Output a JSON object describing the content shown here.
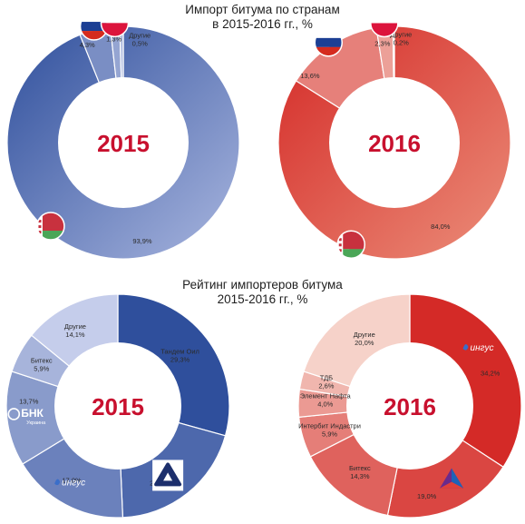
{
  "titles": {
    "top_line1": "Импорт битума по странам",
    "top_line2": "в 2015-2016 гг., %",
    "bottom_line1": "Рейтинг импортеров битума",
    "bottom_line2": "2015-2016 гг., %"
  },
  "colors": {
    "blue_dark": "#2f4f9c",
    "blue_light": "#b7c2e4",
    "red_dark": "#d42a27",
    "red_light": "#f4c7bd",
    "year": "#c8102e"
  },
  "flags": {
    "russia": "russia-flag-icon",
    "poland": "poland-flag-icon",
    "belarus": "belarus-flag-icon"
  },
  "logos": {
    "bnk_text": "БНК",
    "bnk_sub": "Украина",
    "ingus_text": "ингус"
  },
  "chart_data": [
    {
      "type": "pie",
      "year": "2015",
      "slices": [
        {
          "label": "",
          "value": 93.9,
          "value_text": "93,9%",
          "flag": "belarus"
        },
        {
          "label": "",
          "value": 4.3,
          "value_text": "4,3%",
          "flag": "russia"
        },
        {
          "label": "",
          "value": 1.3,
          "value_text": "1,3%",
          "flag": "poland"
        },
        {
          "label": "Другие",
          "value": 0.5,
          "value_text": "0,5%"
        }
      ]
    },
    {
      "type": "pie",
      "year": "2016",
      "slices": [
        {
          "label": "",
          "value": 84.0,
          "value_text": "84,0%",
          "flag": "belarus"
        },
        {
          "label": "",
          "value": 13.6,
          "value_text": "13,6%",
          "flag": "russia"
        },
        {
          "label": "",
          "value": 2.3,
          "value_text": "2,3%",
          "flag": "poland"
        },
        {
          "label": "Другие",
          "value": 0.2,
          "value_text": "0,2%"
        }
      ]
    },
    {
      "type": "pie",
      "year": "2015",
      "slices": [
        {
          "label": "Тандем Оил",
          "value": 29.3,
          "value_text": "29,3%"
        },
        {
          "label": "",
          "value": 20.0,
          "value_text": "20,0%",
          "logo": "triangle-logo"
        },
        {
          "label": "",
          "value": 17.0,
          "value_text": "17,0%",
          "logo": "ingus-logo"
        },
        {
          "label": "",
          "value": 13.7,
          "value_text": "13,7%",
          "logo": "bnk-logo"
        },
        {
          "label": "Битекс",
          "value": 5.9,
          "value_text": "5,9%"
        },
        {
          "label": "Другие",
          "value": 14.1,
          "value_text": "14,1%"
        }
      ]
    },
    {
      "type": "pie",
      "year": "2016",
      "slices": [
        {
          "label": "",
          "value": 34.2,
          "value_text": "34,2%",
          "logo": "ingus-logo"
        },
        {
          "label": "",
          "value": 19.0,
          "value_text": "19,0%",
          "logo": "prism-logo"
        },
        {
          "label": "Битекс",
          "value": 14.3,
          "value_text": "14,3%"
        },
        {
          "label": "Интербит Индастри",
          "value": 5.9,
          "value_text": "5,9%"
        },
        {
          "label": "Элемент Нафта",
          "value": 4.0,
          "value_text": "4,0%"
        },
        {
          "label": "ТДБ",
          "value": 2.6,
          "value_text": "2,6%"
        },
        {
          "label": "Другие",
          "value": 20.0,
          "value_text": "20,0%"
        }
      ]
    }
  ]
}
